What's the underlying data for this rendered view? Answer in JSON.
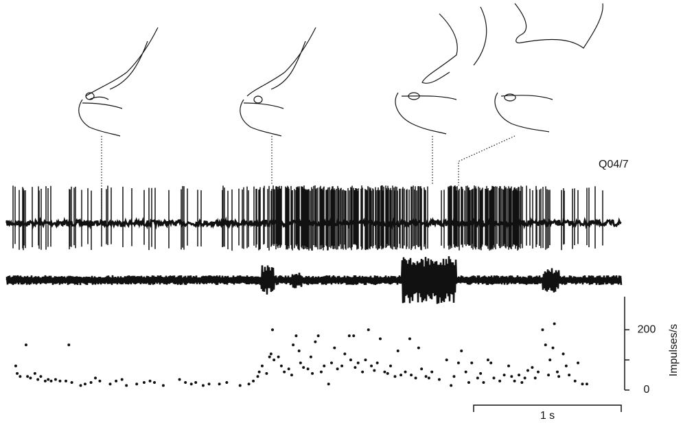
{
  "chart_data": {
    "type": "scatter",
    "label": "Q04/7",
    "y_label": "Impulses/s",
    "scale_bar": {
      "value": 1,
      "label": "1 s"
    },
    "color": "#111111",
    "xlim": [
      0,
      4.16
    ],
    "ylim": [
      0,
      310
    ],
    "yticks": [
      0,
      {
        "value": 100,
        "label": null
      },
      200
    ],
    "x": [
      0.06,
      0.07,
      0.09,
      0.13,
      0.14,
      0.16,
      0.19,
      0.21,
      0.23,
      0.26,
      0.28,
      0.3,
      0.33,
      0.36,
      0.4,
      0.42,
      0.44,
      0.5,
      0.53,
      0.57,
      0.6,
      0.63,
      0.7,
      0.74,
      0.78,
      0.81,
      0.88,
      0.93,
      0.97,
      1.0,
      1.06,
      1.17,
      1.21,
      1.25,
      1.28,
      1.33,
      1.37,
      1.44,
      1.49,
      1.58,
      1.64,
      1.67,
      1.7,
      1.71,
      1.73,
      1.76,
      1.78,
      1.79,
      1.8,
      1.81,
      1.84,
      1.86,
      1.88,
      1.91,
      1.93,
      1.94,
      1.96,
      1.98,
      1.99,
      2.01,
      2.04,
      2.06,
      2.07,
      2.09,
      2.11,
      2.13,
      2.15,
      2.18,
      2.2,
      2.22,
      2.24,
      2.27,
      2.29,
      2.32,
      2.33,
      2.35,
      2.36,
      2.38,
      2.41,
      2.43,
      2.45,
      2.47,
      2.49,
      2.51,
      2.53,
      2.56,
      2.58,
      2.6,
      2.63,
      2.65,
      2.67,
      2.7,
      2.73,
      2.74,
      2.77,
      2.79,
      2.81,
      2.84,
      2.86,
      2.88,
      2.93,
      2.98,
      3.01,
      3.03,
      3.06,
      3.08,
      3.11,
      3.13,
      3.15,
      3.19,
      3.21,
      3.23,
      3.26,
      3.28,
      3.3,
      3.34,
      3.37,
      3.4,
      3.42,
      3.44,
      3.47,
      3.49,
      3.51,
      3.53,
      3.56,
      3.58,
      3.6,
      3.63,
      3.65,
      3.67,
      3.68,
      3.7,
      3.71,
      3.73,
      3.74,
      3.77,
      3.79,
      3.81,
      3.85,
      3.87,
      3.9,
      3.93
    ],
    "values": [
      80,
      55,
      45,
      150,
      45,
      40,
      55,
      35,
      45,
      30,
      35,
      30,
      35,
      30,
      30,
      150,
      25,
      15,
      20,
      25,
      40,
      30,
      20,
      30,
      35,
      15,
      20,
      25,
      30,
      25,
      15,
      35,
      25,
      20,
      25,
      15,
      20,
      20,
      25,
      15,
      20,
      30,
      45,
      60,
      80,
      55,
      110,
      120,
      200,
      100,
      110,
      80,
      60,
      70,
      50,
      150,
      180,
      130,
      90,
      75,
      70,
      110,
      55,
      160,
      180,
      60,
      80,
      20,
      90,
      140,
      70,
      80,
      120,
      180,
      100,
      180,
      75,
      90,
      60,
      100,
      200,
      80,
      65,
      90,
      170,
      60,
      55,
      80,
      45,
      130,
      50,
      60,
      170,
      50,
      40,
      140,
      70,
      45,
      40,
      60,
      35,
      100,
      15,
      45,
      90,
      130,
      60,
      25,
      90,
      40,
      55,
      25,
      100,
      90,
      40,
      30,
      50,
      80,
      45,
      30,
      50,
      25,
      40,
      65,
      75,
      40,
      60,
      200,
      150,
      50,
      100,
      140,
      220,
      60,
      45,
      120,
      80,
      50,
      30,
      90,
      20,
      20
    ]
  }
}
